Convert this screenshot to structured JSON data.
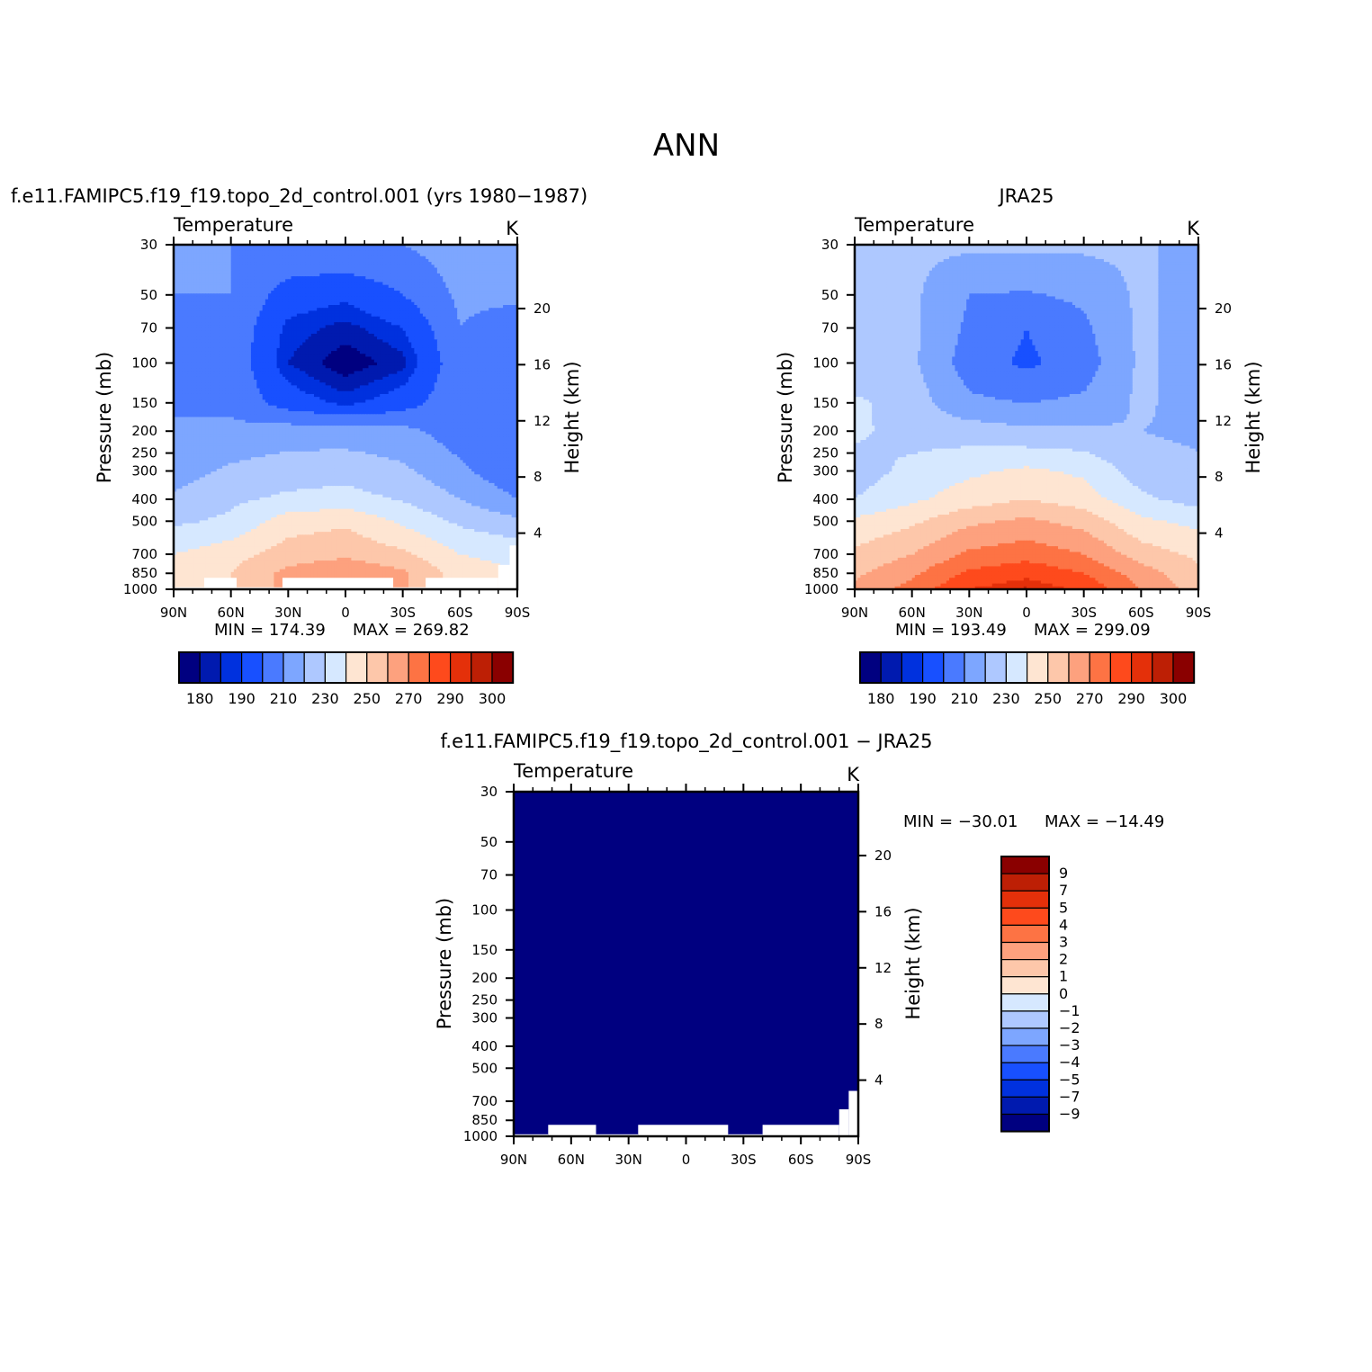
{
  "figure": {
    "title": "ANN"
  },
  "palette": {
    "colors": [
      "#000080",
      "#001aaf",
      "#0031de",
      "#1850ff",
      "#4a7aff",
      "#7da6ff",
      "#aec8ff",
      "#d6e8ff",
      "#fee5d2",
      "#fdc7aa",
      "#fda17e",
      "#fd7344",
      "#fe4a1c",
      "#e4300a",
      "#bd1f05",
      "#8a0000"
    ],
    "levels": [
      180,
      185,
      190,
      200,
      210,
      220,
      230,
      240,
      250,
      260,
      270,
      280,
      290,
      295,
      300
    ]
  },
  "chart_data": [
    {
      "type": "heatmap",
      "id": "model",
      "title": "f.e11.FAMIPC5.f19_f19.topo_2d_control.001 (yrs 1980−1987)",
      "variable": "Temperature",
      "units": "K",
      "xlabel": "",
      "ylabel": "Pressure (mb)",
      "y2label": "Height (km)",
      "x_ticks": [
        "90N",
        "60N",
        "30N",
        "0",
        "30S",
        "60S",
        "90S"
      ],
      "lat_range": [
        90,
        -90
      ],
      "y_ticks": [
        30,
        50,
        70,
        100,
        150,
        200,
        250,
        300,
        400,
        500,
        700,
        850,
        1000
      ],
      "y_range": [
        30,
        1000
      ],
      "log_scale": true,
      "y2_ticks": [
        4,
        8,
        12,
        16,
        20
      ],
      "min_label": "MIN = 174.39",
      "max_label": "MAX = 269.82",
      "colorbar": {
        "orientation": "horizontal",
        "labels": [
          "180",
          "190",
          "210",
          "230",
          "250",
          "270",
          "290",
          "300"
        ]
      },
      "field_approx": {
        "lats": [
          90,
          60,
          30,
          0,
          -30,
          -60,
          -90
        ],
        "pressure": [
          30,
          50,
          70,
          100,
          150,
          200,
          300,
          400,
          500,
          700,
          850
        ],
        "temperature_K": [
          [
            210,
            210,
            210,
            210,
            210,
            215,
            215
          ],
          [
            210,
            210,
            195,
            192,
            200,
            212,
            212
          ],
          [
            210,
            208,
            188,
            183,
            190,
            210,
            205
          ],
          [
            210,
            208,
            185,
            176,
            183,
            208,
            205
          ],
          [
            210,
            208,
            195,
            188,
            195,
            208,
            202
          ],
          [
            210,
            212,
            215,
            215,
            213,
            205,
            200
          ],
          [
            215,
            222,
            225,
            226,
            222,
            212,
            202
          ],
          [
            222,
            228,
            232,
            234,
            229,
            220,
            210
          ],
          [
            228,
            232,
            245,
            248,
            238,
            228,
            222
          ],
          [
            240,
            246,
            255,
            258,
            252,
            240,
            237
          ],
          [
            245,
            250,
            263,
            268,
            262,
            245,
            240
          ]
        ],
        "surface_mask": [
          {
            "lat_from": 90,
            "lat_to": 74,
            "p_below": 980
          },
          {
            "lat_from": 74,
            "lat_to": 57,
            "p_below": 890
          },
          {
            "lat_from": 57,
            "lat_to": 33,
            "p_below": 980
          },
          {
            "lat_from": 33,
            "lat_to": -25,
            "p_below": 890
          },
          {
            "lat_from": -25,
            "lat_to": -42,
            "p_below": 980
          },
          {
            "lat_from": -42,
            "lat_to": -80,
            "p_below": 890
          },
          {
            "lat_from": -80,
            "lat_to": -86,
            "p_below": 780
          },
          {
            "lat_from": -86,
            "lat_to": -90,
            "p_below": 640
          }
        ]
      }
    },
    {
      "type": "heatmap",
      "id": "obs",
      "title": "JRA25",
      "variable": "Temperature",
      "units": "K",
      "xlabel": "",
      "ylabel": "Pressure (mb)",
      "y2label": "Height (km)",
      "x_ticks": [
        "90N",
        "60N",
        "30N",
        "0",
        "30S",
        "60S",
        "90S"
      ],
      "lat_range": [
        90,
        -90
      ],
      "y_ticks": [
        30,
        50,
        70,
        100,
        150,
        200,
        250,
        300,
        400,
        500,
        700,
        850,
        1000
      ],
      "y_range": [
        30,
        1000
      ],
      "log_scale": true,
      "y2_ticks": [
        4,
        8,
        12,
        16,
        20
      ],
      "min_label": "MIN = 193.49",
      "max_label": "MAX = 299.09",
      "colorbar": {
        "orientation": "horizontal",
        "labels": [
          "180",
          "190",
          "210",
          "230",
          "250",
          "270",
          "290",
          "300"
        ]
      },
      "field_approx": {
        "lats": [
          90,
          60,
          30,
          0,
          -30,
          -60,
          -90
        ],
        "pressure": [
          30,
          50,
          70,
          100,
          150,
          200,
          300,
          400,
          500,
          700,
          850,
          1000
        ],
        "temperature_K": [
          [
            222,
            222,
            222,
            222,
            222,
            222,
            215
          ],
          [
            222,
            222,
            210,
            209,
            212,
            222,
            215
          ],
          [
            222,
            222,
            208,
            200,
            208,
            222,
            215
          ],
          [
            222,
            222,
            205,
            198,
            205,
            222,
            215
          ],
          [
            232,
            225,
            212,
            210,
            212,
            222,
            215
          ],
          [
            232,
            226,
            225,
            222,
            222,
            220,
            218
          ],
          [
            225,
            233,
            238,
            242,
            238,
            225,
            222
          ],
          [
            230,
            238,
            245,
            250,
            245,
            232,
            226
          ],
          [
            242,
            248,
            258,
            262,
            256,
            242,
            237
          ],
          [
            252,
            260,
            272,
            276,
            270,
            255,
            248
          ],
          [
            258,
            268,
            282,
            287,
            280,
            265,
            252
          ],
          [
            262,
            274,
            290,
            296,
            288,
            270,
            255
          ]
        ],
        "surface_mask": []
      }
    },
    {
      "type": "heatmap",
      "id": "diff",
      "title": "f.e11.FAMIPC5.f19_f19.topo_2d_control.001 − JRA25",
      "variable": "Temperature",
      "units": "K",
      "xlabel": "",
      "ylabel": "Pressure (mb)",
      "y2label": "Height (km)",
      "x_ticks": [
        "90N",
        "60N",
        "30N",
        "0",
        "30S",
        "60S",
        "90S"
      ],
      "lat_range": [
        90,
        -90
      ],
      "y_ticks": [
        30,
        50,
        70,
        100,
        150,
        200,
        250,
        300,
        400,
        500,
        700,
        850,
        1000
      ],
      "y_range": [
        30,
        1000
      ],
      "log_scale": true,
      "y2_ticks": [
        4,
        8,
        12,
        16,
        20
      ],
      "min_label": "MIN = −30.01",
      "max_label": "MAX = −14.49",
      "uniform_value": -20,
      "colorbar": {
        "orientation": "vertical",
        "levels": [
          -9,
          -7,
          -5,
          -4,
          -3,
          -2,
          -1,
          0,
          1,
          2,
          3,
          4,
          5,
          7,
          9
        ],
        "labels": [
          "9",
          "7",
          "5",
          "4",
          "3",
          "2",
          "1",
          "0",
          "−1",
          "−2",
          "−3",
          "−4",
          "−5",
          "−7",
          "−9"
        ]
      },
      "surface_mask": [
        {
          "lat_from": 90,
          "lat_to": 72,
          "p_below": 980
        },
        {
          "lat_from": 72,
          "lat_to": 47,
          "p_below": 890
        },
        {
          "lat_from": 47,
          "lat_to": 25,
          "p_below": 980
        },
        {
          "lat_from": 25,
          "lat_to": -22,
          "p_below": 890
        },
        {
          "lat_from": -22,
          "lat_to": -40,
          "p_below": 980
        },
        {
          "lat_from": -40,
          "lat_to": -80,
          "p_below": 890
        },
        {
          "lat_from": -80,
          "lat_to": -85,
          "p_below": 760
        },
        {
          "lat_from": -85,
          "lat_to": -90,
          "p_below": 630
        }
      ]
    }
  ]
}
